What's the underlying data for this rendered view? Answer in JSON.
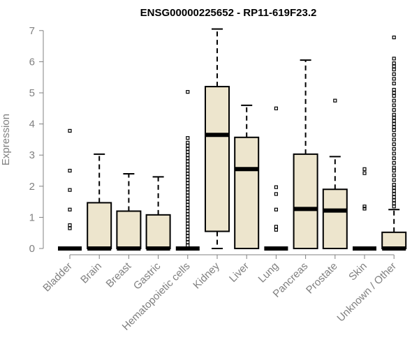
{
  "chart_data": {
    "type": "boxplot",
    "title": "ENSG00000225652 - RP11-619F23.2",
    "ylabel": "Expression",
    "xlabel": "",
    "ylim": [
      0,
      7
    ],
    "yticks": [
      0,
      1,
      2,
      3,
      4,
      5,
      6,
      7
    ],
    "box_color": "#ede5cd",
    "categories": [
      "Bladder",
      "Brain",
      "Breast",
      "Gastric",
      "Hematopoietic cells",
      "Kidney",
      "Liver",
      "Lung",
      "Pancreas",
      "Prostate",
      "Skin",
      "Unknown / Other"
    ],
    "boxes": [
      {
        "q1": 0,
        "median": 0,
        "q3": 0,
        "whisker_low": 0,
        "whisker_high": 0,
        "outliers": [
          0.65,
          0.75,
          1.25,
          1.88,
          2.5,
          3.78
        ]
      },
      {
        "q1": 0,
        "median": 0,
        "q3": 1.47,
        "whisker_low": 0,
        "whisker_high": 3.03,
        "outliers": []
      },
      {
        "q1": 0,
        "median": 0,
        "q3": 1.2,
        "whisker_low": 0,
        "whisker_high": 2.4,
        "outliers": []
      },
      {
        "q1": 0,
        "median": 0,
        "q3": 1.08,
        "whisker_low": 0,
        "whisker_high": 2.3,
        "outliers": []
      },
      {
        "q1": 0,
        "median": 0,
        "q3": 0,
        "whisker_low": 0,
        "whisker_high": 0,
        "outliers": [
          0.1,
          0.2,
          0.3,
          0.4,
          0.5,
          0.6,
          0.7,
          0.8,
          0.9,
          1.0,
          1.1,
          1.2,
          1.3,
          1.4,
          1.5,
          1.6,
          1.7,
          1.8,
          1.9,
          2.0,
          2.1,
          2.2,
          2.3,
          2.4,
          2.5,
          2.6,
          2.7,
          2.8,
          2.9,
          3.0,
          3.1,
          3.2,
          3.3,
          3.4,
          3.55,
          5.03
        ]
      },
      {
        "q1": 0.55,
        "median": 3.65,
        "q3": 5.2,
        "whisker_low": 0,
        "whisker_high": 7.05,
        "outliers": []
      },
      {
        "q1": 0,
        "median": 2.55,
        "q3": 3.57,
        "whisker_low": 0,
        "whisker_high": 4.6,
        "outliers": []
      },
      {
        "q1": 0,
        "median": 0,
        "q3": 0,
        "whisker_low": 0,
        "whisker_high": 0,
        "outliers": [
          0.6,
          0.7,
          1.25,
          1.75,
          1.97,
          4.5
        ]
      },
      {
        "q1": 0,
        "median": 1.27,
        "q3": 3.03,
        "whisker_low": 0,
        "whisker_high": 6.05,
        "outliers": []
      },
      {
        "q1": 0,
        "median": 1.22,
        "q3": 1.9,
        "whisker_low": 0,
        "whisker_high": 2.95,
        "outliers": [
          4.75
        ]
      },
      {
        "q1": 0,
        "median": 0,
        "q3": 0,
        "whisker_low": 0,
        "whisker_high": 0,
        "outliers": [
          1.28,
          1.35,
          2.42,
          2.55
        ]
      },
      {
        "q1": 0,
        "median": 0,
        "q3": 0.52,
        "whisker_low": 0,
        "whisker_high": 1.25,
        "outliers": [
          1.35,
          1.45,
          1.55,
          1.65,
          1.75,
          1.85,
          1.95,
          2.05,
          2.2,
          2.35,
          2.5,
          2.6,
          2.75,
          2.9,
          3.05,
          3.2,
          3.35,
          3.5,
          3.65,
          3.8,
          3.9,
          4.0,
          4.1,
          4.2,
          4.3,
          4.45,
          4.6,
          4.75,
          4.9,
          5.0,
          5.1,
          5.3,
          5.45,
          5.6,
          5.75,
          5.85,
          5.95,
          6.1,
          6.78
        ]
      }
    ]
  }
}
